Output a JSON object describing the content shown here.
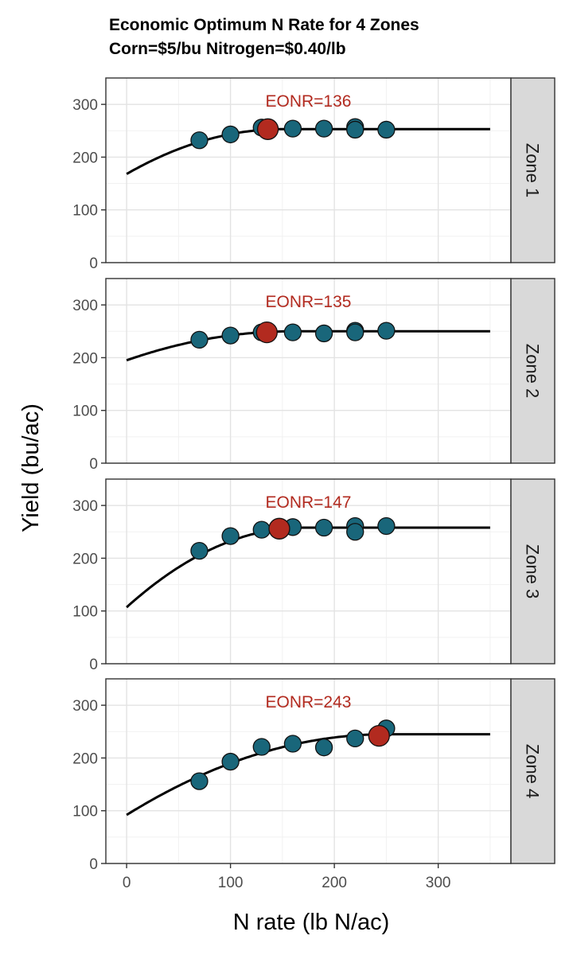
{
  "chart_data": {
    "type": "scatter",
    "title": "Economic Optimum N Rate for 4 Zones",
    "subtitle": "Corn=$5/bu  Nitrogen=$0.40/lb",
    "xlabel": "N rate (lb N/ac)",
    "ylabel": "Yield (bu/ac)",
    "xlim": [
      -20,
      370
    ],
    "ylim": [
      0,
      350
    ],
    "xticks": [
      0,
      100,
      200,
      300
    ],
    "yticks": [
      0,
      100,
      200,
      300
    ],
    "grid": true,
    "colors": {
      "point": "#19667a",
      "eonr_point": "#b22a1f",
      "curve": "#000000",
      "strip": "#d9d9d9",
      "annotation": "#b22a1f"
    },
    "facets": [
      {
        "label": "Zone 1",
        "annotation": "EONR=136",
        "eonr": {
          "x": 136,
          "y": 253
        },
        "curve": {
          "y0": 168,
          "plateau": 253,
          "join": 150,
          "curvature": 0.003778,
          "xmax": 350
        },
        "points": [
          [
            70,
            232
          ],
          [
            100,
            243
          ],
          [
            130,
            256
          ],
          [
            160,
            254
          ],
          [
            190,
            254
          ],
          [
            220,
            257
          ],
          [
            220,
            252
          ],
          [
            250,
            252
          ]
        ]
      },
      {
        "label": "Zone 2",
        "annotation": "EONR=135",
        "eonr": {
          "x": 135,
          "y": 248
        },
        "curve": {
          "y0": 195,
          "plateau": 250,
          "join": 160,
          "curvature": 0.002148,
          "xmax": 350
        },
        "points": [
          [
            70,
            234
          ],
          [
            100,
            242
          ],
          [
            130,
            248
          ],
          [
            160,
            248
          ],
          [
            190,
            246
          ],
          [
            220,
            251
          ],
          [
            220,
            248
          ],
          [
            250,
            251
          ]
        ]
      },
      {
        "label": "Zone 3",
        "annotation": "EONR=147",
        "eonr": {
          "x": 147,
          "y": 256
        },
        "curve": {
          "y0": 107,
          "plateau": 258,
          "join": 170,
          "curvature": 0.005225,
          "xmax": 350
        },
        "points": [
          [
            70,
            214
          ],
          [
            100,
            242
          ],
          [
            130,
            254
          ],
          [
            160,
            259
          ],
          [
            190,
            258
          ],
          [
            220,
            261
          ],
          [
            220,
            250
          ],
          [
            250,
            261
          ]
        ]
      },
      {
        "label": "Zone 4",
        "annotation": "EONR=243",
        "eonr": {
          "x": 243,
          "y": 242
        },
        "curve": {
          "y0": 92,
          "plateau": 245,
          "join": 250,
          "curvature": 0.002448,
          "xmax": 350
        },
        "points": [
          [
            70,
            156
          ],
          [
            100,
            193
          ],
          [
            130,
            221
          ],
          [
            160,
            227
          ],
          [
            190,
            220
          ],
          [
            220,
            237
          ],
          [
            250,
            256
          ]
        ]
      }
    ]
  }
}
